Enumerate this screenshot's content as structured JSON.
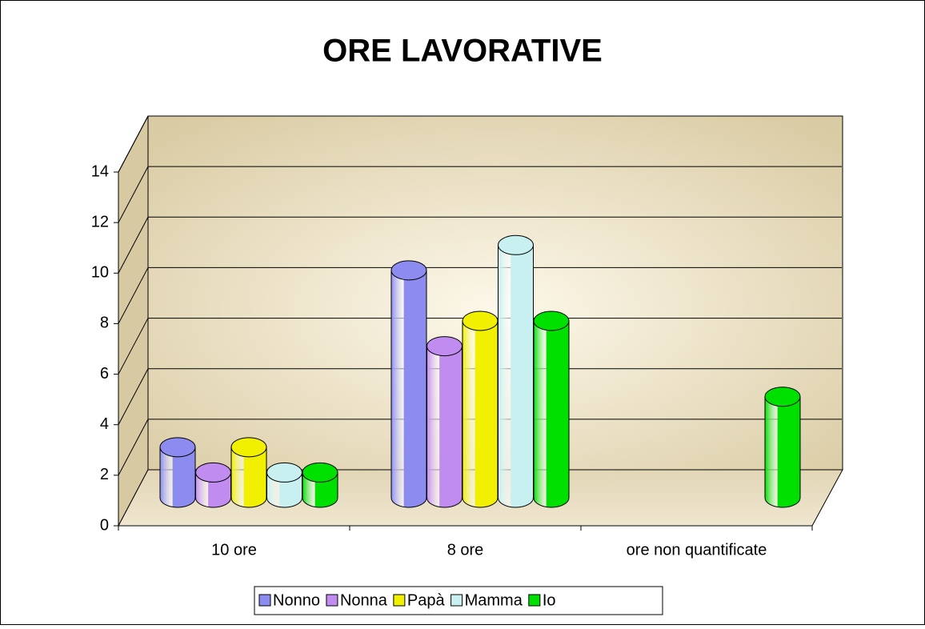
{
  "chart_data": {
    "type": "bar",
    "title": "ORE LAVORATIVE",
    "categories": [
      "10 ore",
      "8 ore",
      "ore non quantificate"
    ],
    "series": [
      {
        "name": "Nonno",
        "color": "#8c8cf0",
        "values": [
          2,
          9,
          null
        ]
      },
      {
        "name": "Nonna",
        "color": "#c08cf0",
        "values": [
          1,
          6,
          null
        ]
      },
      {
        "name": "Papà",
        "color": "#f0f000",
        "values": [
          2,
          7,
          null
        ]
      },
      {
        "name": "Mamma",
        "color": "#c8f0f0",
        "values": [
          1,
          10,
          null
        ]
      },
      {
        "name": "Io",
        "color": "#00e000",
        "values": [
          1,
          7,
          4
        ]
      }
    ],
    "ylim": [
      0,
      14
    ],
    "yticks": [
      0,
      2,
      4,
      6,
      8,
      10,
      12,
      14
    ],
    "grid": true,
    "legend": "bottom"
  }
}
